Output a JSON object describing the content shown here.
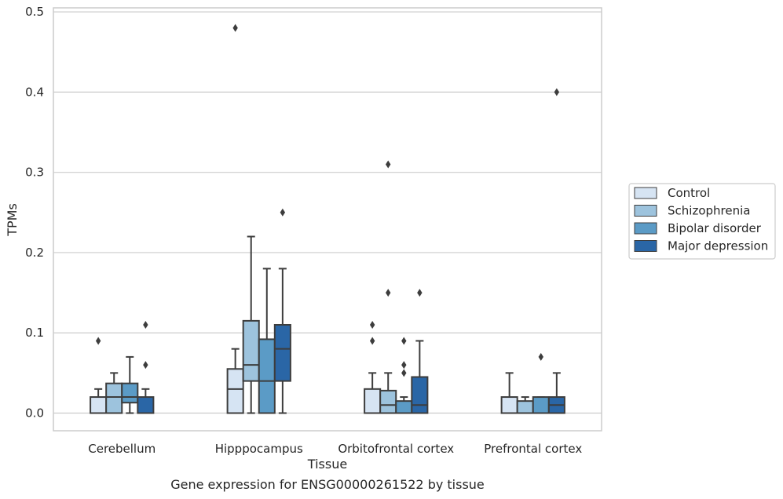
{
  "chart_data": {
    "type": "box",
    "title": "",
    "caption": "Gene expression for ENSG00000261522 by tissue",
    "xlabel": "Tissue",
    "ylabel": "TPMs",
    "ylim": [
      -0.022,
      0.505
    ],
    "yticks": [
      0.0,
      0.1,
      0.2,
      0.3,
      0.4,
      0.5
    ],
    "ytick_labels": [
      "0.0",
      "0.1",
      "0.2",
      "0.3",
      "0.4",
      "0.5"
    ],
    "grid": true,
    "legend_position": "right",
    "categories": [
      "Cerebellum",
      "Hipppocampus",
      "Orbitofrontal cortex",
      "Prefrontal cortex"
    ],
    "series": [
      {
        "name": "Control",
        "color": "#d6e4f3",
        "boxes": [
          {
            "whislo": 0.0,
            "q1": 0.0,
            "med": 0.0,
            "q3": 0.02,
            "whishi": 0.03,
            "fliers": [
              0.09
            ]
          },
          {
            "whislo": 0.0,
            "q1": 0.0,
            "med": 0.03,
            "q3": 0.055,
            "whishi": 0.08,
            "fliers": [
              0.48
            ]
          },
          {
            "whislo": 0.0,
            "q1": 0.0,
            "med": 0.0,
            "q3": 0.03,
            "whishi": 0.05,
            "fliers": [
              0.09,
              0.11
            ]
          },
          {
            "whislo": 0.0,
            "q1": 0.0,
            "med": 0.0,
            "q3": 0.02,
            "whishi": 0.05,
            "fliers": []
          }
        ]
      },
      {
        "name": "Schizophrenia",
        "color": "#9dc3dd",
        "boxes": [
          {
            "whislo": 0.0,
            "q1": 0.0,
            "med": 0.02,
            "q3": 0.037,
            "whishi": 0.05,
            "fliers": []
          },
          {
            "whislo": 0.0,
            "q1": 0.04,
            "med": 0.06,
            "q3": 0.115,
            "whishi": 0.22,
            "fliers": []
          },
          {
            "whislo": 0.0,
            "q1": 0.0,
            "med": 0.01,
            "q3": 0.028,
            "whishi": 0.05,
            "fliers": [
              0.15,
              0.31
            ]
          },
          {
            "whislo": 0.0,
            "q1": 0.0,
            "med": 0.0,
            "q3": 0.015,
            "whishi": 0.02,
            "fliers": []
          }
        ]
      },
      {
        "name": "Bipolar disorder",
        "color": "#5b9bc6",
        "boxes": [
          {
            "whislo": 0.0,
            "q1": 0.013,
            "med": 0.02,
            "q3": 0.037,
            "whishi": 0.07,
            "fliers": []
          },
          {
            "whislo": 0.0,
            "q1": 0.0,
            "med": 0.04,
            "q3": 0.092,
            "whishi": 0.18,
            "fliers": []
          },
          {
            "whislo": 0.0,
            "q1": 0.0,
            "med": 0.0,
            "q3": 0.015,
            "whishi": 0.02,
            "fliers": [
              0.05,
              0.06,
              0.09
            ]
          },
          {
            "whislo": 0.0,
            "q1": 0.0,
            "med": 0.0,
            "q3": 0.02,
            "whishi": 0.02,
            "fliers": [
              0.07
            ]
          }
        ]
      },
      {
        "name": "Major depression",
        "color": "#2a66a6",
        "boxes": [
          {
            "whislo": 0.0,
            "q1": 0.0,
            "med": 0.0,
            "q3": 0.02,
            "whishi": 0.03,
            "fliers": [
              0.06,
              0.11
            ]
          },
          {
            "whislo": 0.0,
            "q1": 0.04,
            "med": 0.08,
            "q3": 0.11,
            "whishi": 0.18,
            "fliers": [
              0.25
            ]
          },
          {
            "whislo": 0.0,
            "q1": 0.0,
            "med": 0.01,
            "q3": 0.045,
            "whishi": 0.09,
            "fliers": [
              0.15
            ]
          },
          {
            "whislo": 0.0,
            "q1": 0.0,
            "med": 0.01,
            "q3": 0.02,
            "whishi": 0.05,
            "fliers": [
              0.4
            ]
          }
        ]
      }
    ]
  }
}
